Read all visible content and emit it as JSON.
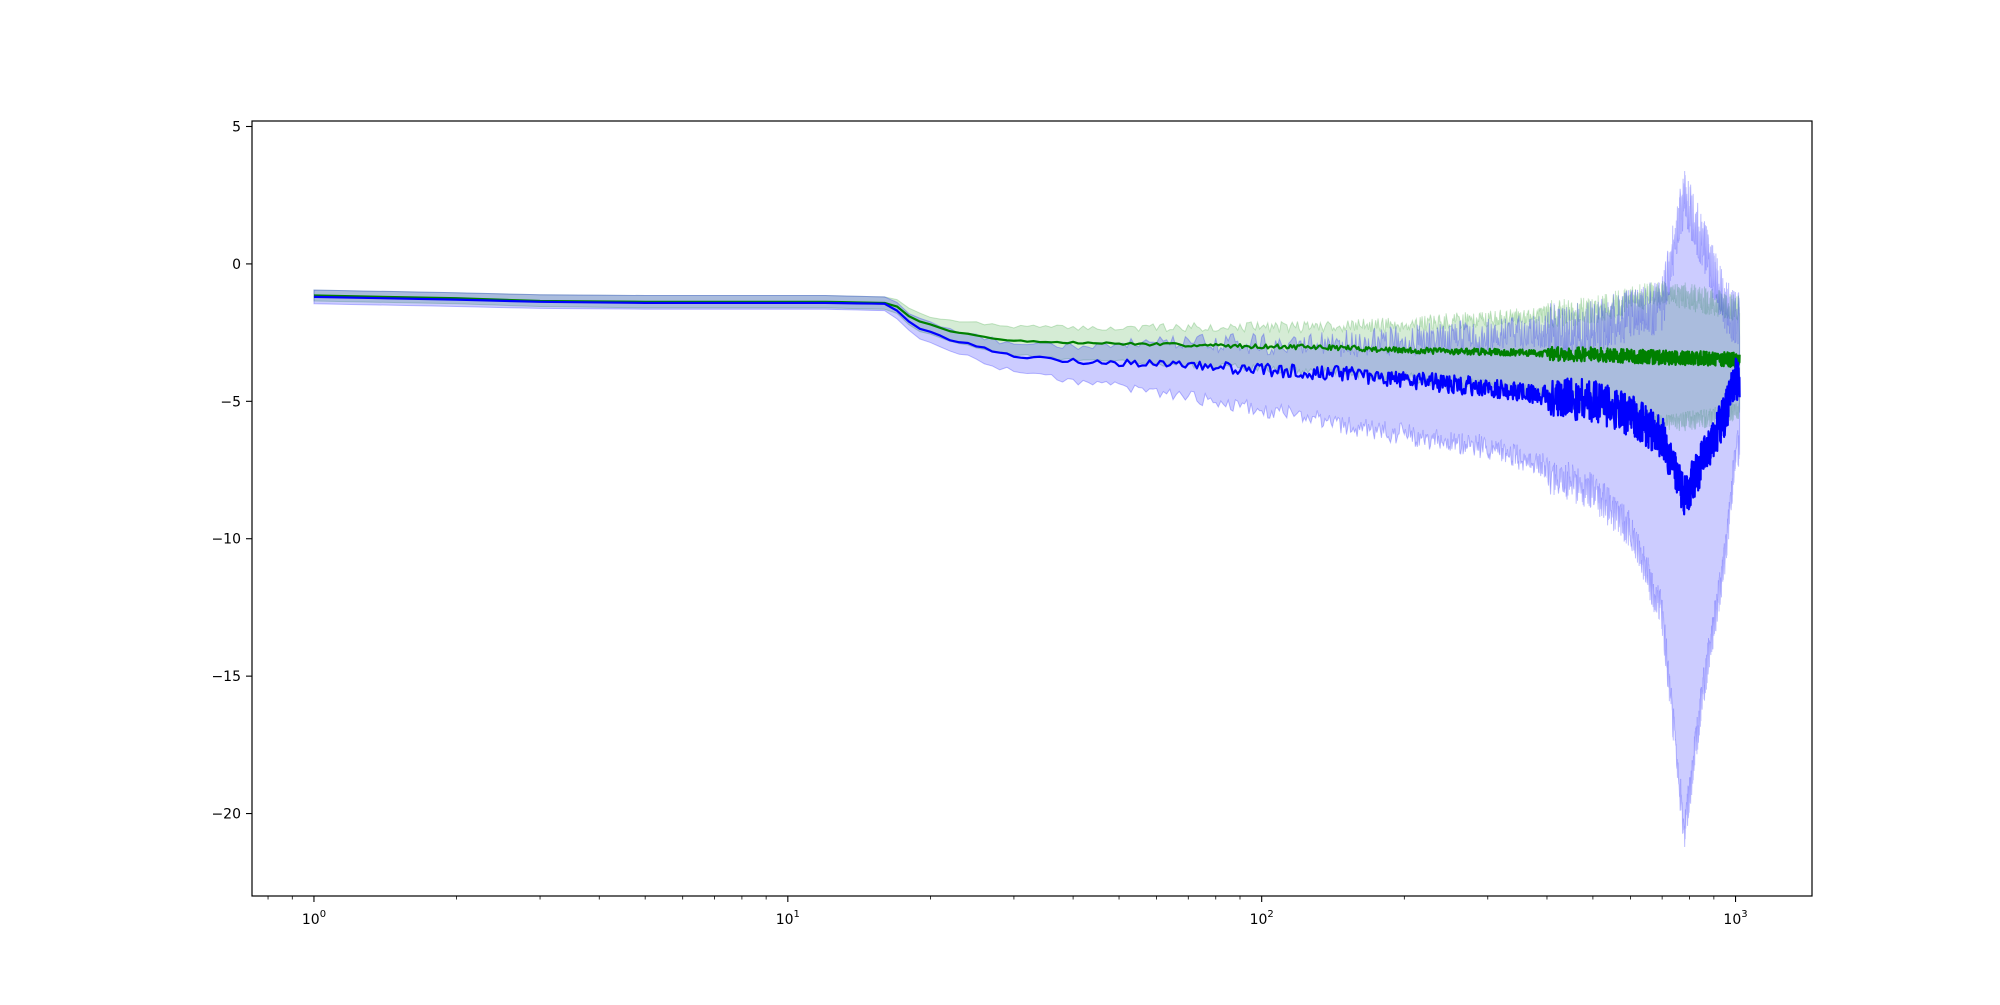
{
  "chart_data": {
    "type": "line",
    "title": "",
    "xlabel": "",
    "ylabel": "",
    "xscale": "log",
    "xlim": [
      0.74,
      1450
    ],
    "ylim": [
      -23,
      5.2
    ],
    "grid": false,
    "legend": "none",
    "x_ticks": [
      {
        "value": 1,
        "base": "10",
        "exp": "0"
      },
      {
        "value": 10,
        "base": "10",
        "exp": "1"
      },
      {
        "value": 100,
        "base": "10",
        "exp": "2"
      },
      {
        "value": 1000,
        "base": "10",
        "exp": "3"
      }
    ],
    "y_ticks": [
      {
        "value": 5,
        "label": "5"
      },
      {
        "value": 0,
        "label": "0"
      },
      {
        "value": -5,
        "label": "−5"
      },
      {
        "value": -10,
        "label": "−10"
      },
      {
        "value": -15,
        "label": "−15"
      },
      {
        "value": -20,
        "label": "−20"
      }
    ],
    "series": [
      {
        "color": "#008000",
        "band_color": "#2ca02c",
        "anchors": [
          [
            1,
            -1.15
          ],
          [
            2,
            -1.25
          ],
          [
            3,
            -1.35
          ],
          [
            5,
            -1.38
          ],
          [
            8,
            -1.38
          ],
          [
            12,
            -1.38
          ],
          [
            16,
            -1.42
          ],
          [
            17,
            -1.55
          ],
          [
            18,
            -1.9
          ],
          [
            19,
            -2.1
          ],
          [
            20,
            -2.2
          ],
          [
            22,
            -2.45
          ],
          [
            25,
            -2.6
          ],
          [
            28,
            -2.75
          ],
          [
            35,
            -2.85
          ],
          [
            50,
            -2.9
          ],
          [
            70,
            -2.95
          ],
          [
            100,
            -3.0
          ],
          [
            150,
            -3.05
          ],
          [
            200,
            -3.15
          ],
          [
            300,
            -3.2
          ],
          [
            500,
            -3.3
          ],
          [
            700,
            -3.4
          ],
          [
            900,
            -3.45
          ],
          [
            1000,
            -3.5
          ]
        ],
        "upper": [
          [
            1,
            -0.95
          ],
          [
            2,
            -1.05
          ],
          [
            3,
            -1.12
          ],
          [
            5,
            -1.15
          ],
          [
            8,
            -1.15
          ],
          [
            12,
            -1.15
          ],
          [
            16,
            -1.2
          ],
          [
            17,
            -1.3
          ],
          [
            18,
            -1.6
          ],
          [
            19,
            -1.8
          ],
          [
            20,
            -1.95
          ],
          [
            22,
            -2.05
          ],
          [
            25,
            -2.15
          ],
          [
            28,
            -2.25
          ],
          [
            35,
            -2.3
          ],
          [
            50,
            -2.35
          ],
          [
            70,
            -2.3
          ],
          [
            100,
            -2.3
          ],
          [
            150,
            -2.25
          ],
          [
            200,
            -2.2
          ],
          [
            300,
            -2.0
          ],
          [
            500,
            -1.7
          ],
          [
            700,
            -1.0
          ],
          [
            900,
            -1.4
          ],
          [
            1000,
            -1.6
          ]
        ],
        "lower": [
          [
            1,
            -1.35
          ],
          [
            2,
            -1.45
          ],
          [
            3,
            -1.55
          ],
          [
            5,
            -1.6
          ],
          [
            8,
            -1.6
          ],
          [
            12,
            -1.6
          ],
          [
            16,
            -1.65
          ],
          [
            17,
            -1.8
          ],
          [
            18,
            -2.2
          ],
          [
            19,
            -2.45
          ],
          [
            20,
            -2.55
          ],
          [
            22,
            -2.8
          ],
          [
            25,
            -3.0
          ],
          [
            28,
            -3.2
          ],
          [
            35,
            -3.35
          ],
          [
            50,
            -3.45
          ],
          [
            70,
            -3.55
          ],
          [
            100,
            -3.65
          ],
          [
            150,
            -3.8
          ],
          [
            200,
            -3.95
          ],
          [
            300,
            -4.2
          ],
          [
            500,
            -4.7
          ],
          [
            700,
            -5.5
          ],
          [
            900,
            -5.2
          ],
          [
            1000,
            -5.0
          ]
        ],
        "noise": 0.12,
        "band_noise": 0.45
      },
      {
        "color": "#0000ff",
        "band_color": "#0000ff",
        "anchors": [
          [
            1,
            -1.2
          ],
          [
            2,
            -1.3
          ],
          [
            3,
            -1.38
          ],
          [
            5,
            -1.42
          ],
          [
            8,
            -1.42
          ],
          [
            12,
            -1.42
          ],
          [
            16,
            -1.45
          ],
          [
            17,
            -1.7
          ],
          [
            18,
            -2.1
          ],
          [
            19,
            -2.35
          ],
          [
            20,
            -2.45
          ],
          [
            22,
            -2.75
          ],
          [
            25,
            -3.0
          ],
          [
            28,
            -3.25
          ],
          [
            35,
            -3.45
          ],
          [
            50,
            -3.6
          ],
          [
            70,
            -3.7
          ],
          [
            100,
            -3.85
          ],
          [
            150,
            -4.0
          ],
          [
            200,
            -4.2
          ],
          [
            300,
            -4.5
          ],
          [
            500,
            -5.0
          ],
          [
            600,
            -5.5
          ],
          [
            700,
            -6.3
          ],
          [
            780,
            -8.5
          ],
          [
            850,
            -7.2
          ],
          [
            950,
            -5.5
          ],
          [
            1000,
            -4.2
          ]
        ],
        "upper": [
          [
            1,
            -0.95
          ],
          [
            2,
            -1.05
          ],
          [
            3,
            -1.12
          ],
          [
            5,
            -1.15
          ],
          [
            8,
            -1.15
          ],
          [
            12,
            -1.15
          ],
          [
            16,
            -1.2
          ],
          [
            17,
            -1.4
          ],
          [
            18,
            -1.8
          ],
          [
            19,
            -2.0
          ],
          [
            20,
            -2.1
          ],
          [
            22,
            -2.4
          ],
          [
            25,
            -2.6
          ],
          [
            28,
            -2.8
          ],
          [
            35,
            -2.9
          ],
          [
            50,
            -2.95
          ],
          [
            70,
            -2.9
          ],
          [
            100,
            -2.9
          ],
          [
            150,
            -2.9
          ],
          [
            200,
            -2.8
          ],
          [
            300,
            -2.6
          ],
          [
            500,
            -2.3
          ],
          [
            700,
            -1.5
          ],
          [
            780,
            2.5
          ],
          [
            850,
            0.8
          ],
          [
            950,
            -1.5
          ],
          [
            1000,
            -2.0
          ]
        ],
        "lower": [
          [
            1,
            -1.45
          ],
          [
            2,
            -1.55
          ],
          [
            3,
            -1.62
          ],
          [
            5,
            -1.65
          ],
          [
            8,
            -1.65
          ],
          [
            12,
            -1.65
          ],
          [
            16,
            -1.7
          ],
          [
            17,
            -2.0
          ],
          [
            18,
            -2.4
          ],
          [
            19,
            -2.7
          ],
          [
            20,
            -2.85
          ],
          [
            22,
            -3.1
          ],
          [
            25,
            -3.4
          ],
          [
            28,
            -3.7
          ],
          [
            35,
            -4.0
          ],
          [
            50,
            -4.3
          ],
          [
            70,
            -4.6
          ],
          [
            100,
            -5.0
          ],
          [
            150,
            -5.5
          ],
          [
            200,
            -5.8
          ],
          [
            300,
            -6.2
          ],
          [
            500,
            -7.5
          ],
          [
            600,
            -9.0
          ],
          [
            700,
            -12.0
          ],
          [
            780,
            -20.0
          ],
          [
            850,
            -15.0
          ],
          [
            950,
            -10.0
          ],
          [
            1000,
            -6.0
          ]
        ],
        "noise": 0.35,
        "band_noise": 0.9
      }
    ]
  }
}
